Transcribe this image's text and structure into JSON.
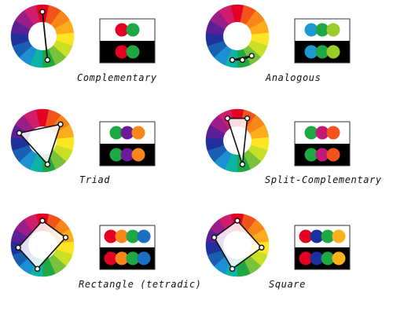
{
  "wheel_colors": [
    "#e30022",
    "#f2531a",
    "#f9861b",
    "#fcac1c",
    "#fde725",
    "#c8df25",
    "#7bc23c",
    "#1da844",
    "#0db3a4",
    "#1b8fd2",
    "#185fb2",
    "#21309a",
    "#5d1f96",
    "#9a1e8a",
    "#d11c6b"
  ],
  "harmonies": [
    {
      "caption": "Complementary",
      "markers": [
        0,
        7
      ],
      "swatches": [
        "#e30022",
        "#1da844"
      ]
    },
    {
      "caption": "Analogous",
      "markers": [
        6,
        7,
        8
      ],
      "swatches": [
        "#1b9ad2",
        "#1da844",
        "#9acc2a"
      ]
    },
    {
      "caption": "Triad",
      "markers": [
        2,
        7,
        12
      ],
      "swatches": [
        "#1da844",
        "#6a1b9a",
        "#f9861b"
      ]
    },
    {
      "caption": "Split-Complementary",
      "markers": [
        1,
        7,
        14
      ],
      "swatches": [
        "#1da844",
        "#c2187a",
        "#f2531a"
      ]
    },
    {
      "caption": "Rectangle (tetradic)",
      "markers": [
        0,
        3,
        8,
        11
      ],
      "swatches": [
        "#e30022",
        "#f9861b",
        "#1da844",
        "#1b6fc2"
      ]
    },
    {
      "caption": "Square",
      "markers": [
        0,
        4,
        8,
        12
      ],
      "swatches": [
        "#e30022",
        "#1a2fa0",
        "#1da844",
        "#fcb01c"
      ]
    }
  ]
}
